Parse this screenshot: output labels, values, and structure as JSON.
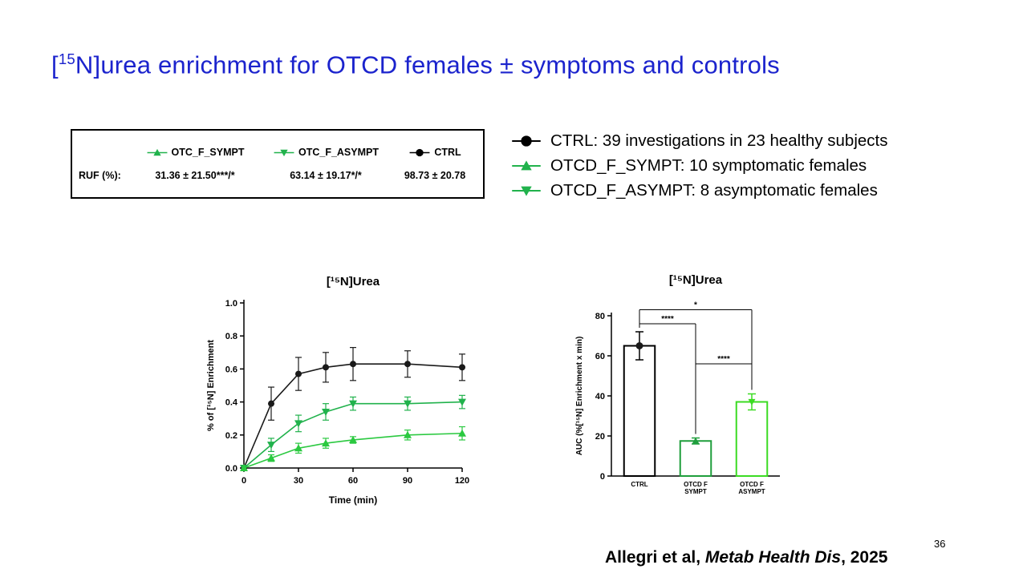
{
  "slide": {
    "title": {
      "prefix": "[",
      "superscript": "15",
      "rest": "N]urea enrichment for OTCD females ± symptoms and controls",
      "title_color": "#1b23cd"
    },
    "page_number": "36",
    "citation": {
      "authors": "Allegri et al, ",
      "journal": "Metab Health Dis",
      "year": ", 2025"
    }
  },
  "stats_box": {
    "row_label": "RUF (%):",
    "groups": [
      {
        "label": "OTC_F_SYMPT",
        "marker": "triangle-up",
        "color": "#21b24c",
        "value": "31.36 ± 21.50***/*"
      },
      {
        "label": "OTC_F_ASYMPT",
        "marker": "triangle-down",
        "color": "#21b24c",
        "value": "63.14 ± 19.17*/*"
      },
      {
        "label": "CTRL",
        "marker": "circle",
        "color": "#000000",
        "value": "98.73 ± 20.78"
      }
    ]
  },
  "legend": {
    "items": [
      {
        "marker": "circle",
        "color": "#000000",
        "text": "CTRL: 39 investigations in 23 healthy subjects"
      },
      {
        "marker": "triangle-up",
        "color": "#21b24c",
        "text": "OTCD_F_SYMPT: 10 symptomatic females"
      },
      {
        "marker": "triangle-down",
        "color": "#21b24c",
        "text": "OTCD_F_ASYMPT: 8 asymptomatic females"
      }
    ]
  },
  "chart_data": [
    {
      "type": "line",
      "title": "[¹⁵N]Urea",
      "xlabel": "Time (min)",
      "ylabel": "% of [¹⁵N] Enrichment",
      "x": [
        0,
        15,
        30,
        45,
        60,
        90,
        120
      ],
      "xlim": [
        0,
        120
      ],
      "ylim": [
        0,
        1.0
      ],
      "xticks": [
        0,
        30,
        60,
        90,
        120
      ],
      "yticks": [
        0.0,
        0.2,
        0.4,
        0.6,
        0.8,
        1.0
      ],
      "grid": false,
      "series": [
        {
          "name": "CTRL",
          "marker": "circle",
          "color": "#1a1a1a",
          "values": [
            0,
            0.39,
            0.57,
            0.61,
            0.63,
            0.63,
            0.61
          ],
          "errors": [
            0,
            0.1,
            0.1,
            0.09,
            0.1,
            0.08,
            0.08
          ]
        },
        {
          "name": "OTC_F_ASYMPT",
          "marker": "triangle-down",
          "color": "#21b24c",
          "values": [
            0,
            0.14,
            0.27,
            0.34,
            0.39,
            0.39,
            0.4
          ],
          "errors": [
            0,
            0.04,
            0.05,
            0.05,
            0.04,
            0.04,
            0.04
          ]
        },
        {
          "name": "OTC_F_SYMPT",
          "marker": "triangle-up",
          "color": "#2bc940",
          "values": [
            0,
            0.06,
            0.12,
            0.15,
            0.17,
            0.2,
            0.21
          ],
          "errors": [
            0,
            0.02,
            0.03,
            0.03,
            0.02,
            0.03,
            0.04
          ]
        }
      ]
    },
    {
      "type": "bar",
      "title": "[¹⁵N]Urea",
      "ylabel": "AUC (%[¹⁵N] Enrichment x min)",
      "categories": [
        "CTRL",
        "OTCD F\nSYMPT",
        "OTCD F\nASYMPT"
      ],
      "values": [
        65,
        17.5,
        37
      ],
      "errors": [
        7,
        1.5,
        4
      ],
      "ylim": [
        0,
        80
      ],
      "yticks": [
        0,
        20,
        40,
        60,
        80
      ],
      "bar_fill": "#ffffff",
      "bar_edge_colors": [
        "#000000",
        "#1f9e3c",
        "#3bdb22"
      ],
      "markers": [
        "circle",
        "triangle-up",
        "triangle-down"
      ],
      "marker_colors": [
        "#1a1a1a",
        "#1f9e3c",
        "#3bdb22"
      ],
      "significance": [
        {
          "from": 0,
          "to": 2,
          "label": "*",
          "y": 83
        },
        {
          "from": 0,
          "to": 1,
          "label": "****",
          "y": 76
        },
        {
          "from": 1,
          "to": 2,
          "label": "****",
          "y": 56
        }
      ]
    }
  ]
}
